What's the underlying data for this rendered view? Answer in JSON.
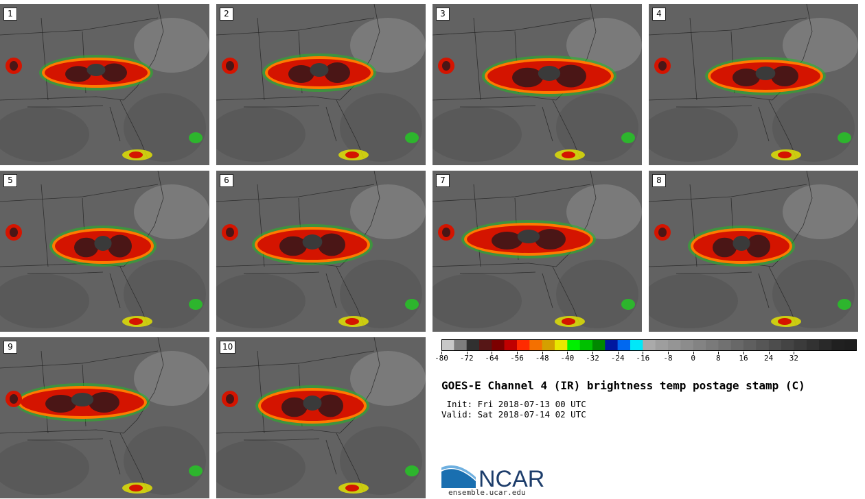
{
  "panels": [
    {
      "label": "1"
    },
    {
      "label": "2"
    },
    {
      "label": "3"
    },
    {
      "label": "4"
    },
    {
      "label": "5"
    },
    {
      "label": "6"
    },
    {
      "label": "7"
    },
    {
      "label": "8"
    },
    {
      "label": "9"
    },
    {
      "label": "10"
    }
  ],
  "colorbar": {
    "colors": [
      "#c8c8c8",
      "#7e7e7e",
      "#303030",
      "#561616",
      "#7c0000",
      "#c00000",
      "#ff2a00",
      "#f47000",
      "#d4a000",
      "#e8e800",
      "#00f000",
      "#00c000",
      "#008800",
      "#0018a0",
      "#0068f0",
      "#00e8f8",
      "#aaaaaa",
      "#9e9e9e",
      "#959595",
      "#8c8c8c",
      "#838383",
      "#7a7a7a",
      "#717171",
      "#686868",
      "#5f5f5f",
      "#565656",
      "#4d4d4d",
      "#444444",
      "#3b3b3b",
      "#323232",
      "#292929",
      "#202020",
      "#1e1e1e"
    ],
    "labels": [
      "-80",
      "-72",
      "-64",
      "-56",
      "-48",
      "-40",
      "-32",
      "-24",
      "-16",
      "-8",
      "0",
      "8",
      "16",
      "24",
      "32"
    ]
  },
  "title": "GOES-E Channel 4 (IR) brightness temp postage stamp (C)",
  "init": " Init: Fri 2018-07-13 00 UTC",
  "valid": "Valid: Sat 2018-07-14 02 UTC",
  "logo": {
    "text": "NCAR",
    "url": "ensemble.ucar.edu"
  }
}
